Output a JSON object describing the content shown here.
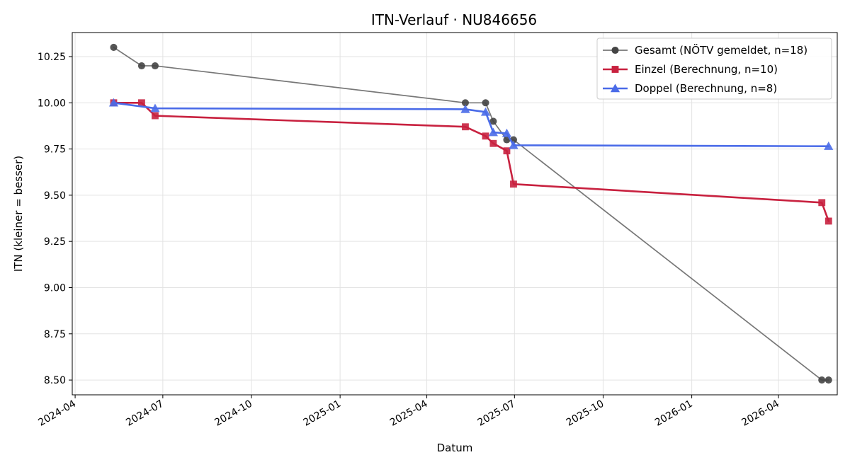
{
  "chart_data": {
    "type": "line",
    "title": "ITN-Verlauf · NU846656",
    "xlabel": "Datum",
    "ylabel": "ITN  (kleiner = besser)",
    "x_ticks": [
      "2024-04",
      "2024-07",
      "2024-10",
      "2025-01",
      "2025-04",
      "2025-07",
      "2025-10",
      "2026-01",
      "2026-04"
    ],
    "y_ticks": [
      "8.50",
      "8.75",
      "9.00",
      "9.25",
      "9.50",
      "9.75",
      "10.00",
      "10.25"
    ],
    "xlim": [
      "2024-03-29",
      "2026-06-01"
    ],
    "ylim": [
      8.42,
      10.38
    ],
    "grid": true,
    "legend_position": "top-right",
    "series": [
      {
        "name": "Gesamt (NÖTV gemeldet, n=18)",
        "color": "#777777",
        "marker_color": "#444444",
        "marker": "circle",
        "points": [
          [
            "2024-05-11",
            10.3
          ],
          [
            "2024-06-09",
            10.2
          ],
          [
            "2024-06-23",
            10.2
          ],
          [
            "2025-05-11",
            10.0
          ],
          [
            "2025-06-01",
            10.0
          ],
          [
            "2025-06-09",
            9.9
          ],
          [
            "2025-06-23",
            9.8
          ],
          [
            "2025-06-30",
            9.8
          ],
          [
            "2026-05-16",
            8.5
          ],
          [
            "2026-05-23",
            8.5
          ]
        ]
      },
      {
        "name": "Einzel (Berechnung, n=10)",
        "color": "#c8213f",
        "marker_color": "#c8213f",
        "marker": "square",
        "points": [
          [
            "2024-05-11",
            10.0
          ],
          [
            "2024-06-09",
            10.0
          ],
          [
            "2024-06-23",
            9.93
          ],
          [
            "2025-05-11",
            9.87
          ],
          [
            "2025-06-01",
            9.82
          ],
          [
            "2025-06-09",
            9.78
          ],
          [
            "2025-06-23",
            9.74
          ],
          [
            "2025-06-30",
            9.56
          ],
          [
            "2026-05-16",
            9.46
          ],
          [
            "2026-05-23",
            9.36
          ]
        ]
      },
      {
        "name": "Doppel (Berechnung, n=8)",
        "color": "#4a6be8",
        "marker_color": "#4a6be8",
        "marker": "triangle",
        "points": [
          [
            "2024-05-11",
            10.0
          ],
          [
            "2024-06-23",
            9.97
          ],
          [
            "2025-05-11",
            9.965
          ],
          [
            "2025-06-01",
            9.95
          ],
          [
            "2025-06-09",
            9.84
          ],
          [
            "2025-06-23",
            9.835
          ],
          [
            "2025-06-30",
            9.77
          ],
          [
            "2026-05-23",
            9.765
          ]
        ]
      }
    ]
  }
}
